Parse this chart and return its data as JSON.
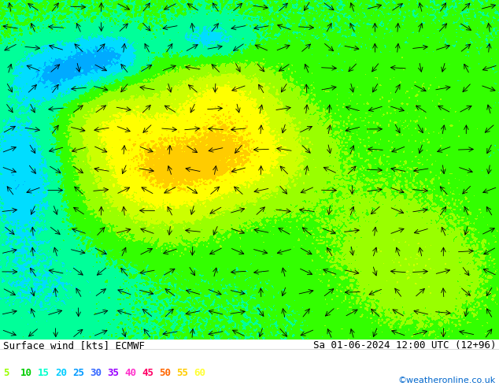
{
  "title_left": "Surface wind [kts] ECMWF",
  "title_right": "Sa 01-06-2024 12:00 UTC (12+96)",
  "credit": "©weatheronline.co.uk",
  "legend_values": [
    5,
    10,
    15,
    20,
    25,
    30,
    35,
    40,
    45,
    50,
    55,
    60
  ],
  "legend_colors_display": [
    "#99ff00",
    "#00cc00",
    "#00ffcc",
    "#00ccff",
    "#0099ff",
    "#3366ff",
    "#9900ff",
    "#ff33cc",
    "#ff0066",
    "#ff6600",
    "#ffcc00",
    "#ffff33"
  ],
  "colormap_colors": [
    "#00aaff",
    "#00ddff",
    "#00ff99",
    "#33ff00",
    "#99ff00",
    "#ccff00",
    "#ffff00",
    "#ffcc00",
    "#ff9900",
    "#ff6600",
    "#ff3300",
    "#ff0000"
  ],
  "colormap_levels": [
    0,
    5,
    10,
    15,
    20,
    25,
    30,
    35,
    40,
    45,
    50,
    55,
    60
  ],
  "figsize": [
    6.34,
    4.9
  ],
  "dpi": 100
}
